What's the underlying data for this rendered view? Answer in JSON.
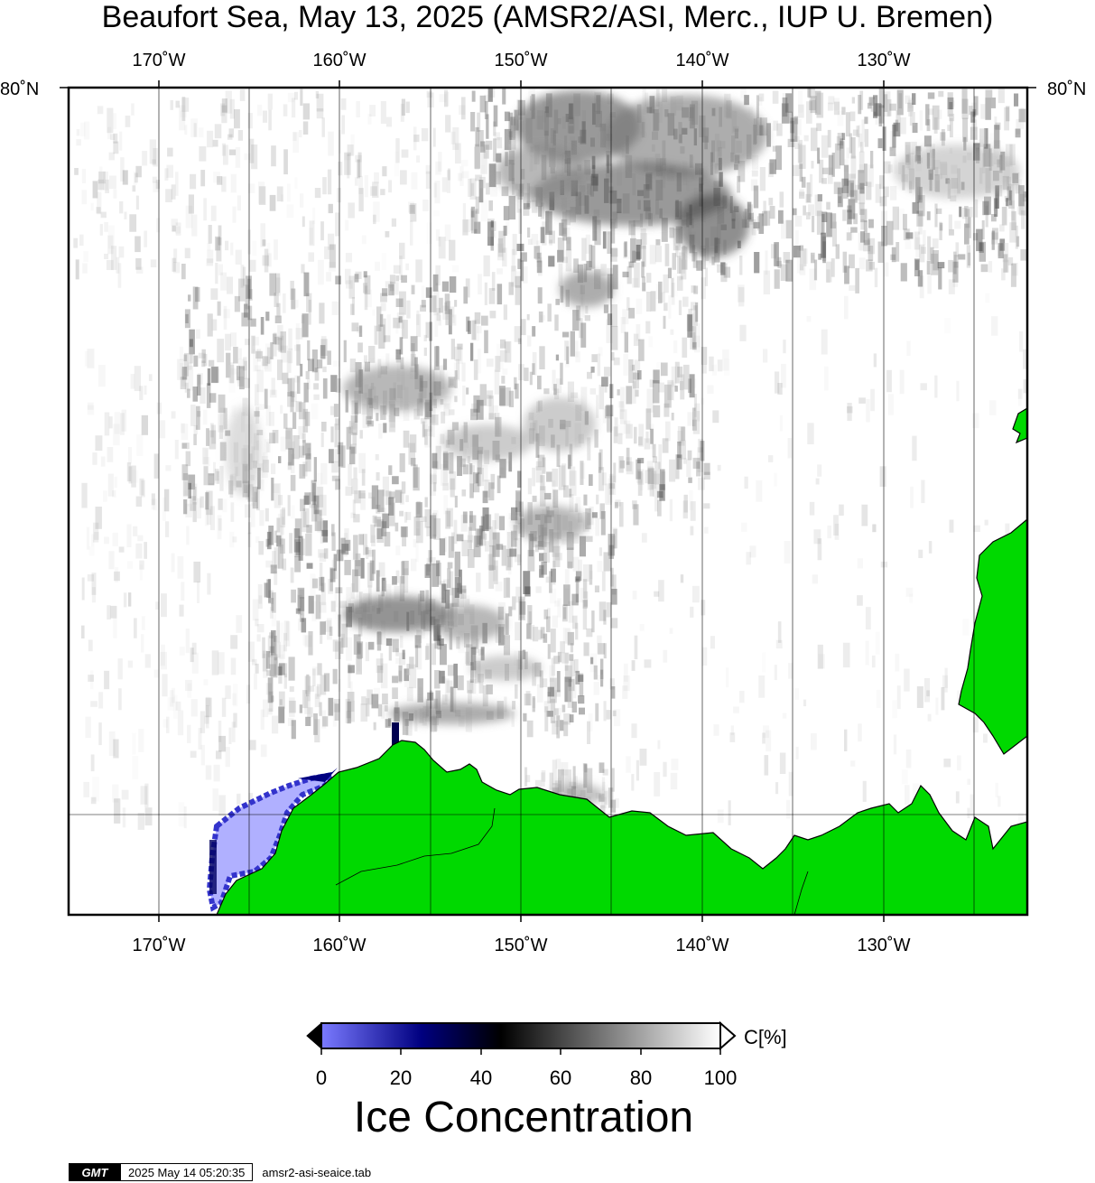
{
  "title": "Beaufort Sea, May 13, 2025 (AMSR2/ASI, Merc., IUP U. Bremen)",
  "map": {
    "projection": "Mercator",
    "lon_range": [
      -175,
      -122
    ],
    "lon_ticks": [
      "170˚W",
      "160˚W",
      "150˚W",
      "140˚W",
      "130˚W"
    ],
    "lat_label_left": "80˚N",
    "lat_label_right": "80˚N",
    "land_color": "#00d900",
    "open_water_color": "#ffffff",
    "ice_color_scale": [
      "#7a7aff",
      "#000080",
      "#000000",
      "#ffffff"
    ]
  },
  "colorbar": {
    "tick_labels": [
      "0",
      "20",
      "40",
      "60",
      "80",
      "100"
    ],
    "unit": "C[%]",
    "title": "Ice Concentration"
  },
  "footer": {
    "logo": "GMT",
    "timestamp": "2025 May 14 05:20:35",
    "file": "amsr2-asi-seaice.tab"
  }
}
